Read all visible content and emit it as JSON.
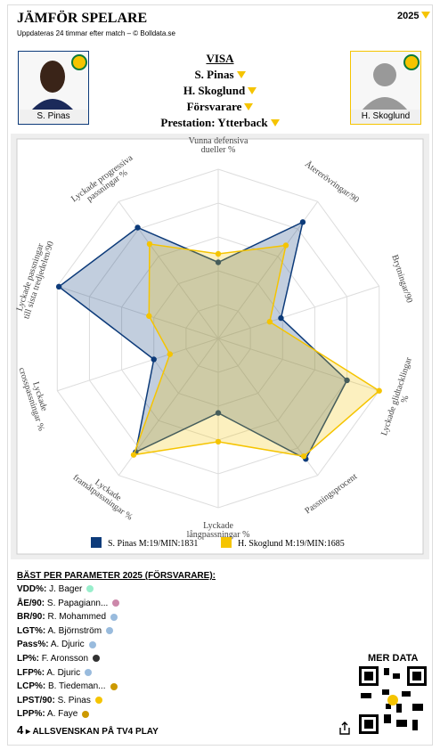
{
  "header": {
    "title": "JÄMFÖR SPELARE",
    "subtitle": "Uppdateras 24 timmar efter match – © Bolldata.se",
    "season": "2025"
  },
  "players": [
    {
      "name": "S. Pinas"
    },
    {
      "name": "H. Skoglund"
    }
  ],
  "selectors": {
    "heading": "VISA",
    "items": [
      "S. Pinas",
      "H. Skoglund",
      "Försvarare",
      "Prestation: Ytterback"
    ]
  },
  "chart_data": {
    "type": "radar",
    "categories": [
      "Vunna defensiva dueller %",
      "Återerövringar/90",
      "Brytningar/90",
      "Lyckade glidtacklingar %",
      "Passningsprocent",
      "Lyckade långpassningar %",
      "Lyckade framåtpassningar %",
      "Lyckade crosspassningar %",
      "Lyckade passningar till sista tredjedelen/90",
      "Lyckade progressiva passningar %"
    ],
    "ylim": [
      0,
      100
    ],
    "grid": true,
    "series": [
      {
        "name": "S. Pinas M:19/MIN:1831",
        "color": "#0d3b7a",
        "values": [
          45,
          85,
          39,
          80,
          88,
          44,
          83,
          40,
          99,
          81
        ]
      },
      {
        "name": "H. Skoglund M:19/MIN:1685",
        "color": "#f5c400",
        "values": [
          50,
          68,
          32,
          100,
          86,
          61,
          85,
          30,
          43,
          69
        ]
      }
    ]
  },
  "best": {
    "title": "BÄST PER PARAMETER 2025 (FÖRSVARARE):",
    "rows": [
      {
        "param": "VDD%:",
        "player": "J. Bager"
      },
      {
        "param": "ÅE/90:",
        "player": "S. Papagiann..."
      },
      {
        "param": "BR/90:",
        "player": "R. Mohammed"
      },
      {
        "param": "LGT%:",
        "player": "A. Björnström"
      },
      {
        "param": "Pass%:",
        "player": "A. Djuric"
      },
      {
        "param": "LP%:",
        "player": "F. Aronsson"
      },
      {
        "param": "LFP%:",
        "player": "A. Djuric"
      },
      {
        "param": "LCP%:",
        "player": "B. Tiedeman..."
      },
      {
        "param": "LPST/90:",
        "player": "S. Pinas"
      },
      {
        "param": "LPP%:",
        "player": "A. Faye"
      }
    ]
  },
  "more": "MER DATA",
  "footer": {
    "channel": "4",
    "text": "ALLSVENSKAN PÅ TV4 PLAY"
  }
}
